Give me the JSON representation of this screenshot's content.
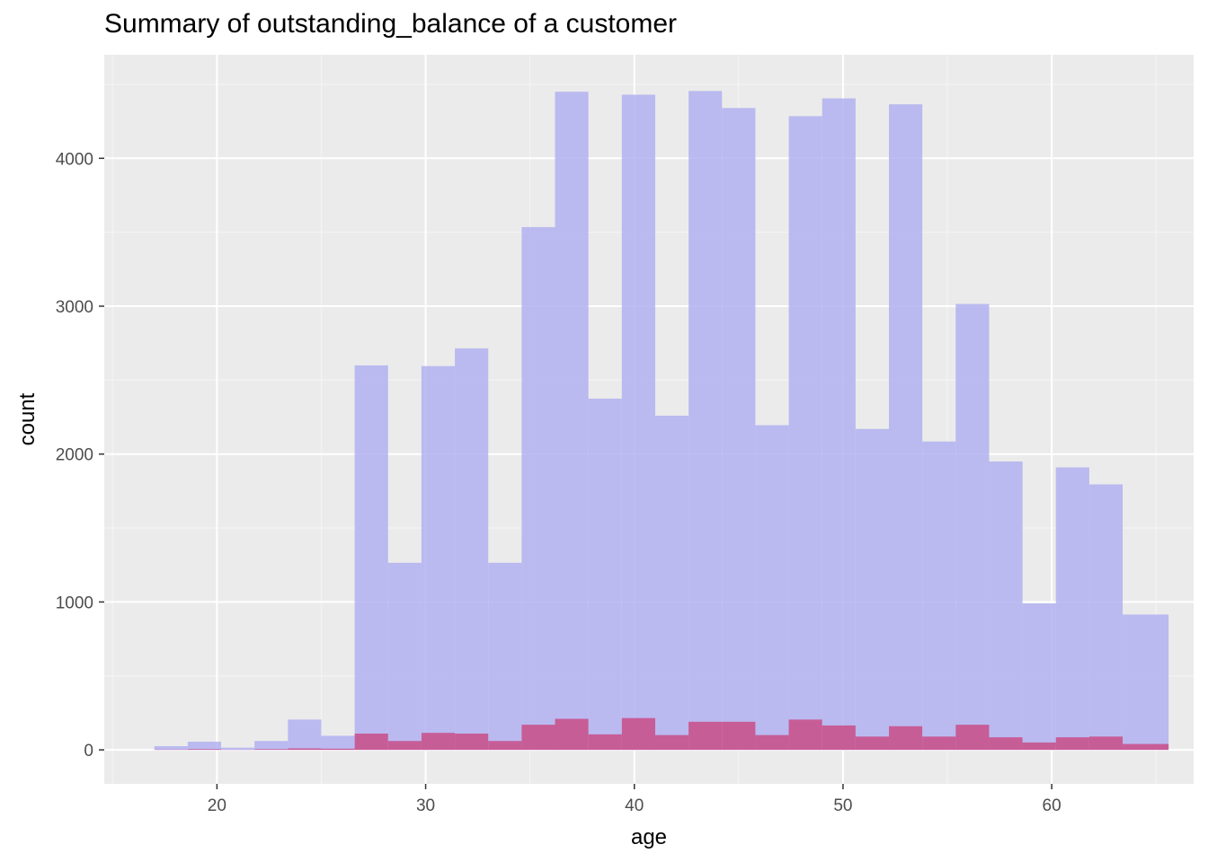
{
  "chart_data": {
    "type": "bar",
    "title": "Summary of outstanding_balance of a customer",
    "xlabel": "age",
    "ylabel": "count",
    "xlim": [
      14.6,
      66.8
    ],
    "ylim": [
      -230,
      4700
    ],
    "x_ticks": [
      20,
      30,
      40,
      50,
      60
    ],
    "y_ticks": [
      0,
      1000,
      2000,
      3000,
      4000
    ],
    "grid": true,
    "legend": "none",
    "colors": {
      "panel_background": "#EBEBEB",
      "grid_major": "#FFFFFF",
      "grid_minor": "#F5F5F5",
      "series_all": "#AFAFF0",
      "series_subset": "#C8508A"
    },
    "bin_width": 1.6,
    "series": [
      {
        "fill": "#AFAFF0",
        "opacity": 0.82,
        "x_start": [
          17.0,
          18.6,
          20.2,
          21.8,
          23.4,
          25.0,
          26.6,
          28.2,
          29.8,
          31.4,
          33.0,
          34.6,
          36.2,
          37.8,
          39.4,
          41.0,
          42.6,
          44.2,
          45.8,
          47.4,
          49.0,
          50.6,
          52.2,
          53.8,
          55.4,
          57.0,
          58.6,
          60.2,
          61.8,
          63.4
        ],
        "x_end": [
          18.6,
          20.2,
          21.8,
          23.4,
          25.0,
          26.6,
          28.2,
          29.8,
          31.4,
          33.0,
          34.6,
          36.2,
          37.8,
          39.4,
          41.0,
          42.6,
          44.2,
          45.8,
          47.4,
          49.0,
          50.6,
          52.2,
          53.8,
          55.4,
          57.0,
          58.6,
          60.2,
          61.8,
          63.4,
          65.6
        ],
        "values": [
          25,
          55,
          15,
          60,
          205,
          95,
          2600,
          1265,
          2595,
          2715,
          1265,
          3535,
          4450,
          2375,
          4430,
          2260,
          4455,
          4340,
          2195,
          4285,
          4405,
          2170,
          4365,
          2085,
          3015,
          1950,
          990,
          1910,
          1795,
          915
        ]
      },
      {
        "fill": "#C8508A",
        "opacity": 0.88,
        "x_start": [
          17.0,
          18.6,
          20.2,
          21.8,
          23.4,
          25.0,
          26.6,
          28.2,
          29.8,
          31.4,
          33.0,
          34.6,
          36.2,
          37.8,
          39.4,
          41.0,
          42.6,
          44.2,
          45.8,
          47.4,
          49.0,
          50.6,
          52.2,
          53.8,
          55.4,
          57.0,
          58.6,
          60.2,
          61.8,
          63.4
        ],
        "x_end": [
          18.6,
          20.2,
          21.8,
          23.4,
          25.0,
          26.6,
          28.2,
          29.8,
          31.4,
          33.0,
          34.6,
          36.2,
          37.8,
          39.4,
          41.0,
          42.6,
          44.2,
          45.8,
          47.4,
          49.0,
          50.6,
          52.2,
          53.8,
          55.4,
          57.0,
          58.6,
          60.2,
          61.8,
          63.4,
          65.6
        ],
        "values": [
          2,
          5,
          1,
          5,
          10,
          8,
          110,
          60,
          115,
          110,
          60,
          170,
          210,
          105,
          215,
          100,
          190,
          190,
          100,
          205,
          165,
          90,
          160,
          90,
          170,
          85,
          50,
          85,
          90,
          40
        ]
      }
    ]
  }
}
